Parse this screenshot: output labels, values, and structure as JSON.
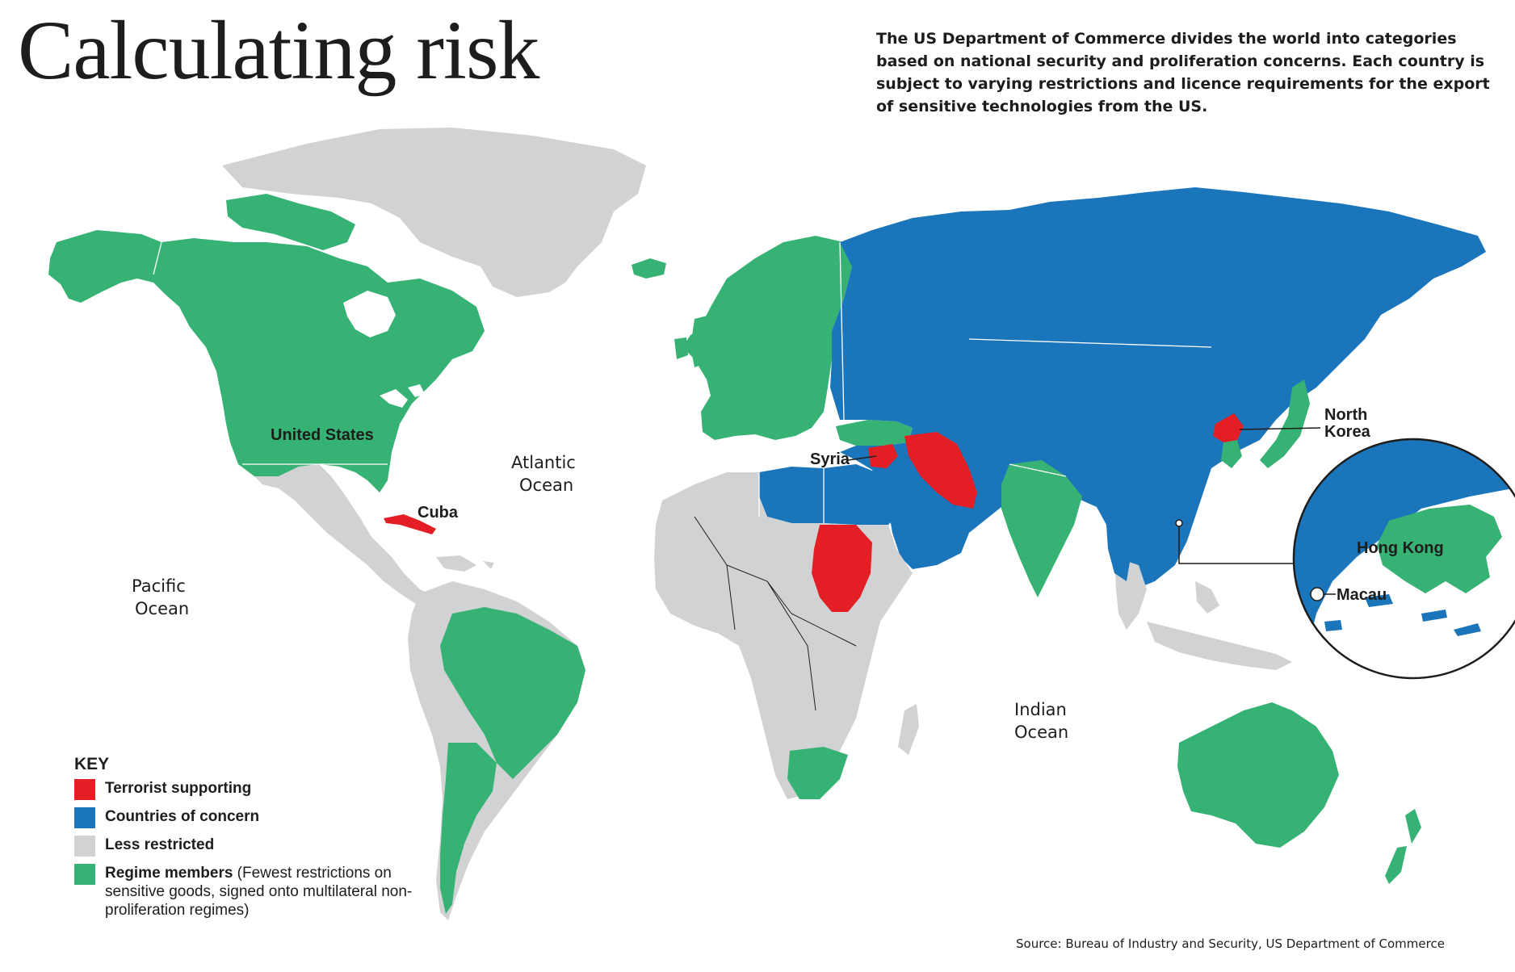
{
  "title": "Calculating risk",
  "intro": "The US Department of Commerce divides the world into categories based on national security and proliferation concerns. Each country is subject to varying restrictions and licence requirements for the export of sensitive technologies from the US.",
  "colors": {
    "terrorist": "#e31e24",
    "concern": "#1b75bb",
    "less": "#d1d2d4",
    "regime": "#36b274",
    "water": "#ffffff"
  },
  "labels": {
    "united_states": "United States",
    "cuba": "Cuba",
    "syria": "Syria",
    "north_korea_1": "North",
    "north_korea_2": "Korea",
    "hong_kong": "Hong Kong",
    "macau": "Macau"
  },
  "oceans": {
    "atlantic_1": "Atlantic",
    "atlantic_2": "Ocean",
    "pacific_1": "Pacific",
    "pacific_2": "Ocean",
    "indian_1": "Indian",
    "indian_2": "Ocean"
  },
  "key": {
    "title": "KEY",
    "items": [
      {
        "label": "Terrorist supporting",
        "note": "",
        "color": "#e31e24"
      },
      {
        "label": "Countries of concern",
        "note": "",
        "color": "#1b75bb"
      },
      {
        "label": "Less restricted",
        "note": "",
        "color": "#d1d2d4"
      },
      {
        "label": "Regime members",
        "note": " (Fewest restrictions on sensitive goods, signed onto multilateral non-proliferation regimes)",
        "color": "#36b274"
      }
    ]
  },
  "source": "Source: Bureau of Industry and Security, US Department of Commerce"
}
